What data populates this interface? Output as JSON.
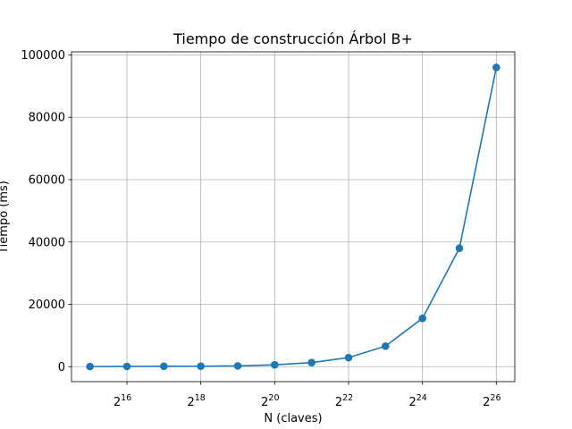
{
  "chart_data": {
    "type": "line",
    "title": "Tiempo de construcción Árbol B+",
    "xlabel": "N (claves)",
    "ylabel": "Tiempo (ms)",
    "x_scale": "log2",
    "x_tick_base": "2",
    "x_tick_exponents": [
      "16",
      "18",
      "20",
      "22",
      "24",
      "26"
    ],
    "y_ticks": [
      "0",
      "20000",
      "40000",
      "60000",
      "80000",
      "100000"
    ],
    "xlim": [
      23170,
      94906266
    ],
    "ylim": [
      -4800,
      101000
    ],
    "grid": true,
    "color": "#1f77b4",
    "marker": "circle",
    "series": [
      {
        "x": [
          32768,
          65536,
          131072,
          262144,
          524288,
          1048576,
          2097152,
          4194304,
          8388608,
          16777216,
          33554432,
          67108864
        ],
        "values": [
          40,
          70,
          120,
          150,
          250,
          600,
          1300,
          2900,
          6600,
          15500,
          38000,
          96000
        ]
      }
    ]
  }
}
